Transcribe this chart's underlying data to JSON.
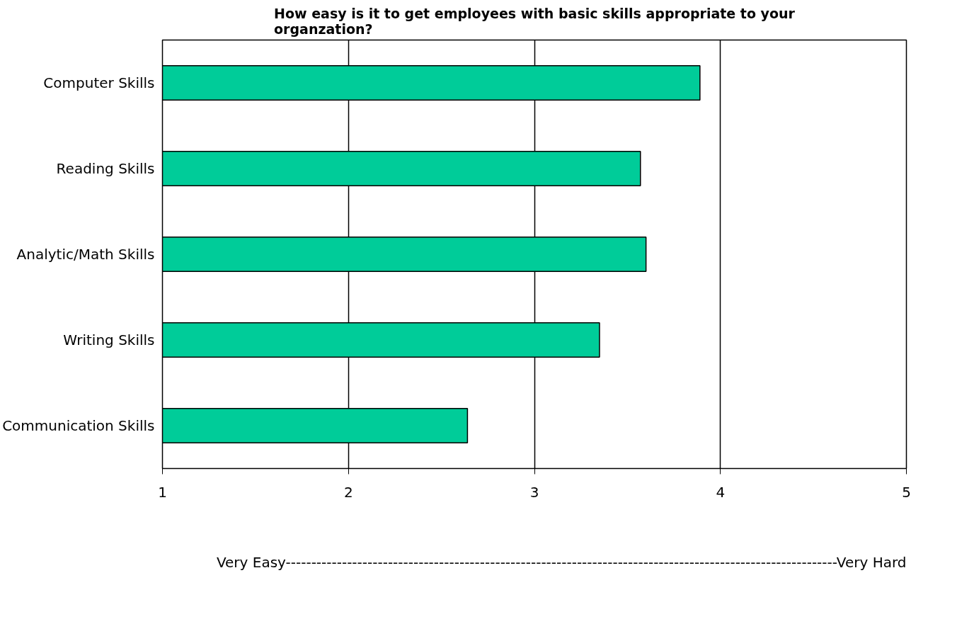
{
  "chart_data": {
    "type": "bar",
    "orientation": "horizontal",
    "title": "How easy is it to get employees with basic skills appropriate to your organzation?",
    "annotations": [
      "Very Easy------------------------------------------------------------------------------------------------------------Very Hard"
    ],
    "categories": [
      "Computer Skills",
      "Reading Skills",
      "Analytic/Math Skills",
      "Writing Skills",
      "Communication Skills"
    ],
    "values": [
      3.89,
      3.57,
      3.6,
      3.35,
      2.64
    ],
    "color": "#00cc99",
    "xlim": [
      1,
      5
    ],
    "xticks": [
      1,
      2,
      3,
      4,
      5
    ],
    "grid": "x"
  }
}
